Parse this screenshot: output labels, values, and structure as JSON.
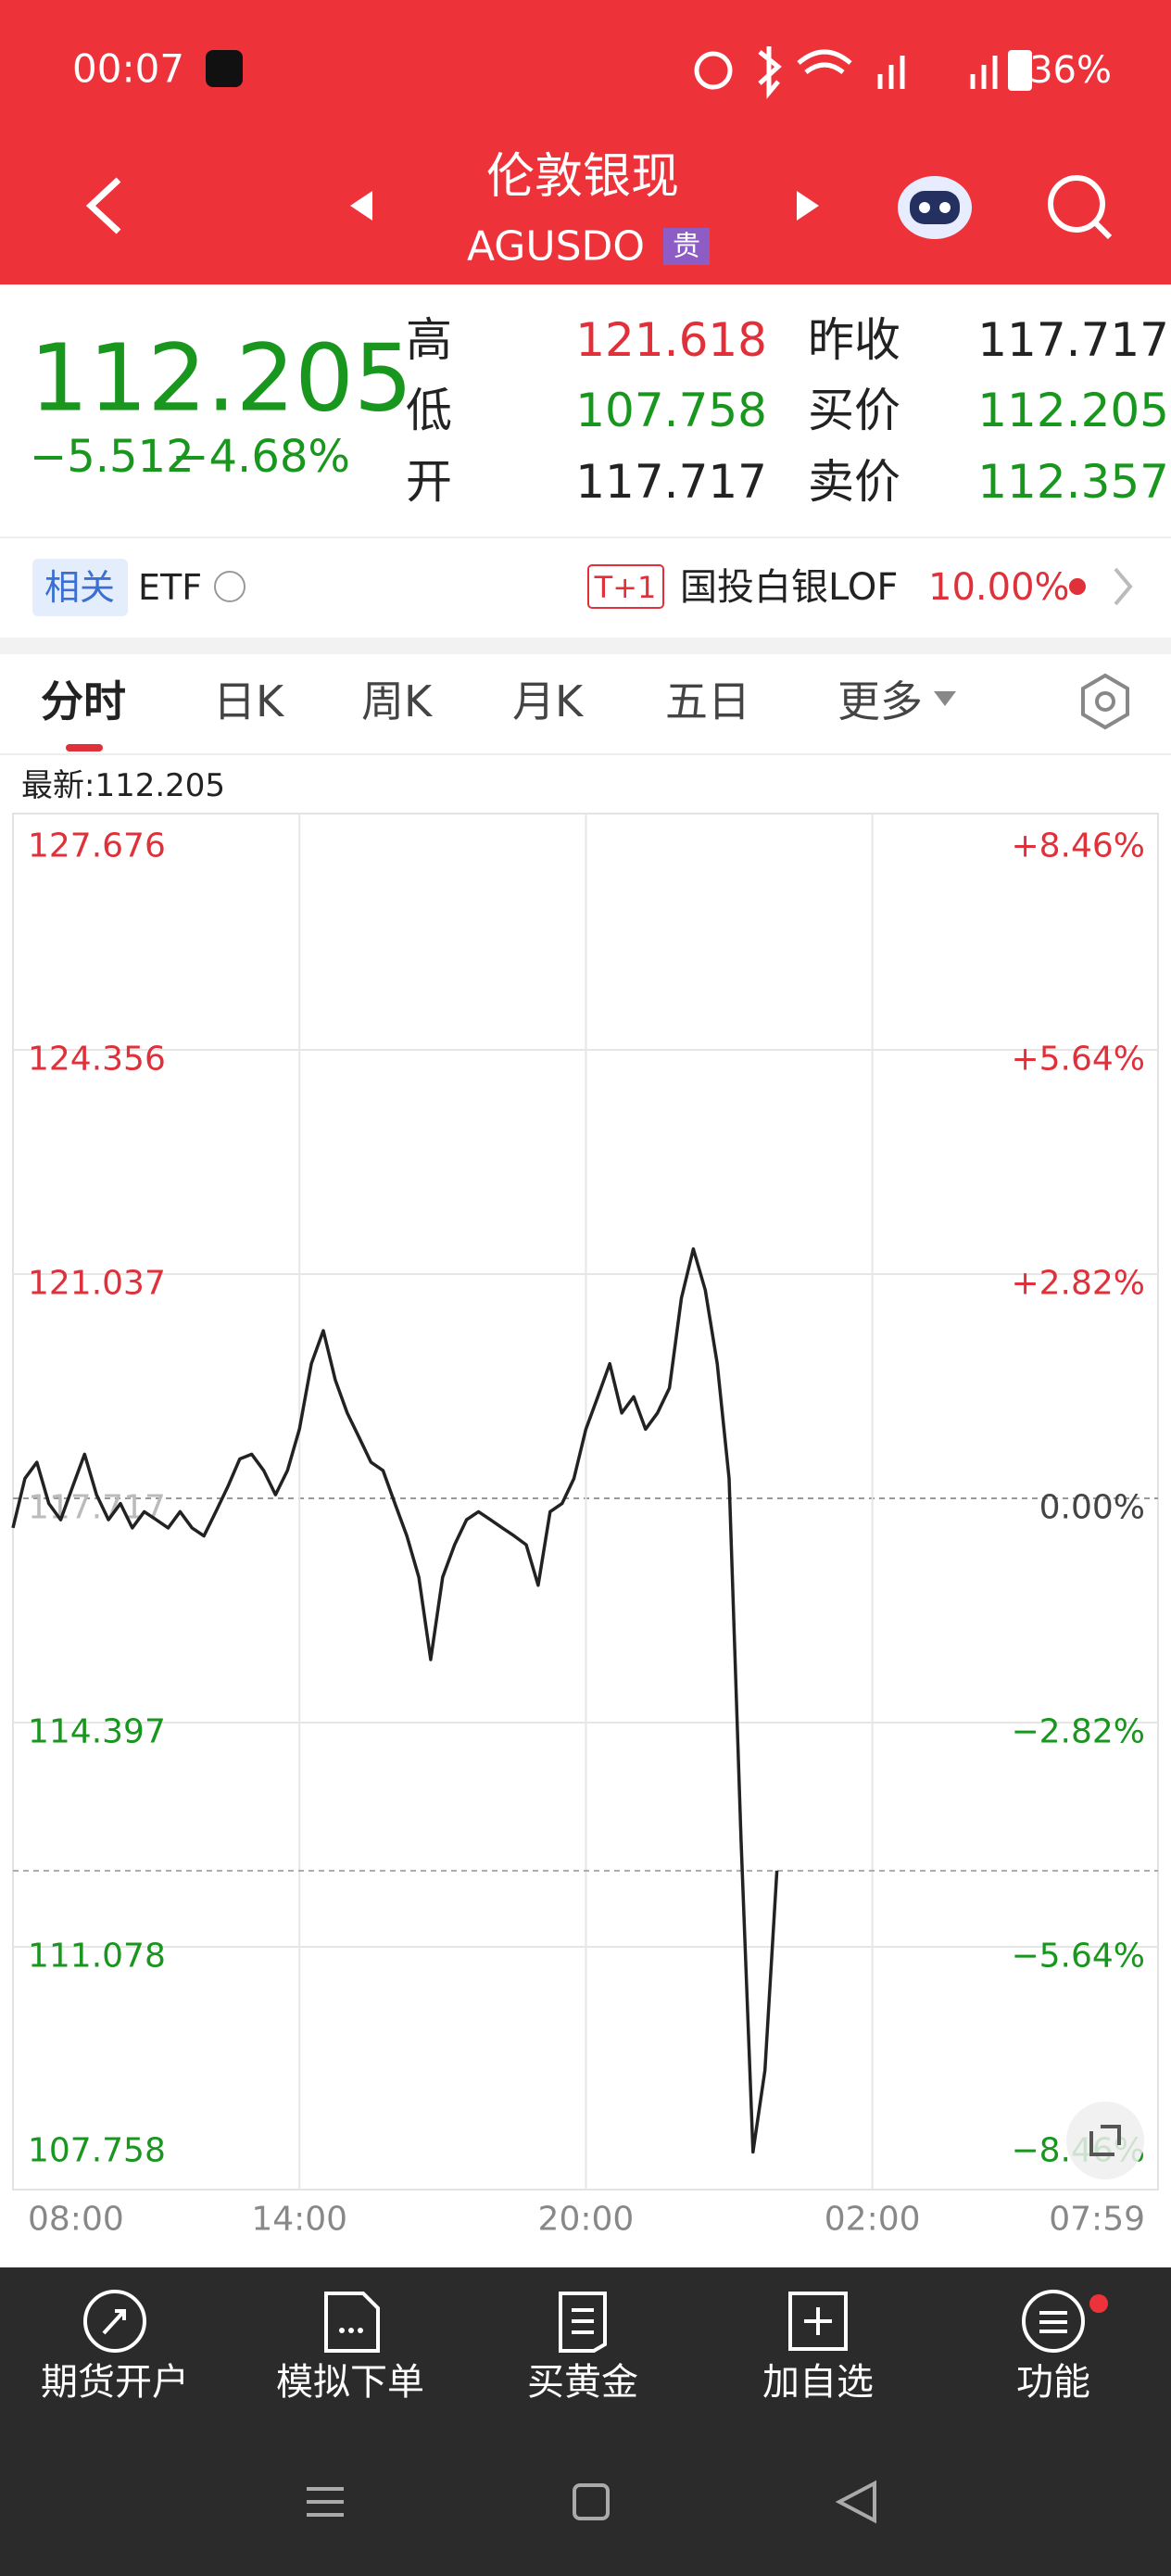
{
  "status_bar": {
    "time": "00:07",
    "battery": "36%"
  },
  "header": {
    "title": "伦敦银现",
    "code": "AGUSDO",
    "tag": "贵"
  },
  "quote": {
    "price": "112.205",
    "change": "−5.512",
    "change_pct": "−4.68%",
    "rows": [
      [
        "高",
        "121.618",
        "昨收",
        "117.717"
      ],
      [
        "低",
        "107.758",
        "买价",
        "112.205"
      ],
      [
        "开",
        "117.717",
        "卖价",
        "112.357"
      ]
    ]
  },
  "related": {
    "label": "相关",
    "etf": "ETF",
    "tag": "T+1",
    "fund": "国投白银LOF",
    "pct": "10.00%"
  },
  "tabs": [
    "分时",
    "日K",
    "周K",
    "月K",
    "五日",
    "更多"
  ],
  "latest": "最新:112.205",
  "chart_data": {
    "type": "line",
    "color": "#222222",
    "x": [
      "08:00",
      "08:15",
      "08:30",
      "08:45",
      "09:00",
      "09:15",
      "09:30",
      "09:45",
      "10:00",
      "10:15",
      "10:30",
      "10:45",
      "11:00",
      "11:15",
      "11:30",
      "11:45",
      "12:00",
      "12:15",
      "12:30",
      "12:45",
      "13:00",
      "13:15",
      "13:30",
      "13:45",
      "14:00",
      "14:15",
      "14:30",
      "14:45",
      "15:00",
      "15:15",
      "15:30",
      "15:45",
      "16:00",
      "16:15",
      "16:30",
      "16:45",
      "17:00",
      "17:15",
      "17:30",
      "17:45",
      "18:00",
      "18:15",
      "18:30",
      "18:45",
      "19:00",
      "19:15",
      "19:30",
      "19:45",
      "20:00",
      "20:15",
      "20:30",
      "20:45",
      "21:00",
      "21:15",
      "21:30",
      "21:45",
      "22:00",
      "22:15",
      "22:30",
      "22:45",
      "23:00",
      "23:15",
      "23:30",
      "23:45",
      "00:00"
    ],
    "values": [
      117.28,
      118.01,
      118.25,
      117.64,
      117.4,
      117.89,
      118.37,
      117.77,
      117.4,
      117.64,
      117.28,
      117.52,
      117.4,
      117.28,
      117.52,
      117.28,
      117.16,
      117.52,
      117.89,
      118.3,
      118.37,
      118.13,
      117.77,
      118.13,
      118.74,
      119.71,
      120.2,
      119.47,
      118.98,
      118.62,
      118.25,
      118.13,
      117.64,
      117.16,
      116.55,
      115.33,
      116.55,
      117.03,
      117.4,
      117.52,
      117.4,
      117.28,
      117.16,
      117.03,
      116.43,
      117.52,
      117.64,
      118.01,
      118.74,
      119.22,
      119.71,
      118.98,
      119.22,
      118.74,
      118.98,
      119.35,
      120.68,
      121.41,
      120.8,
      119.71,
      118.01,
      112.66,
      108.04,
      109.25,
      112.205
    ],
    "xlim": [
      "08:00",
      "07:59"
    ],
    "xticks": [
      "08:00",
      "14:00",
      "20:00",
      "02:00",
      "07:59"
    ],
    "ylim": [
      107.758,
      127.676
    ],
    "yticks": [
      127.676,
      124.356,
      121.037,
      117.717,
      114.397,
      111.078,
      107.758
    ],
    "y2lim": [
      -8.46,
      8.46
    ],
    "y2ticks": [
      {
        "value": 8.46,
        "label": "+8.46%"
      },
      {
        "value": 5.64,
        "label": "+5.64%"
      },
      {
        "value": 2.82,
        "label": "+2.82%"
      },
      {
        "value": 0,
        "label": "0.00%"
      },
      {
        "value": -2.82,
        "label": "−2.82%"
      },
      {
        "value": -5.64,
        "label": "−5.64%"
      },
      {
        "value": -8.46,
        "label": "−8.46%"
      }
    ],
    "grid": true
  },
  "bottom_nav": [
    "期货开户",
    "模拟下单",
    "买黄金",
    "加自选",
    "功能"
  ]
}
